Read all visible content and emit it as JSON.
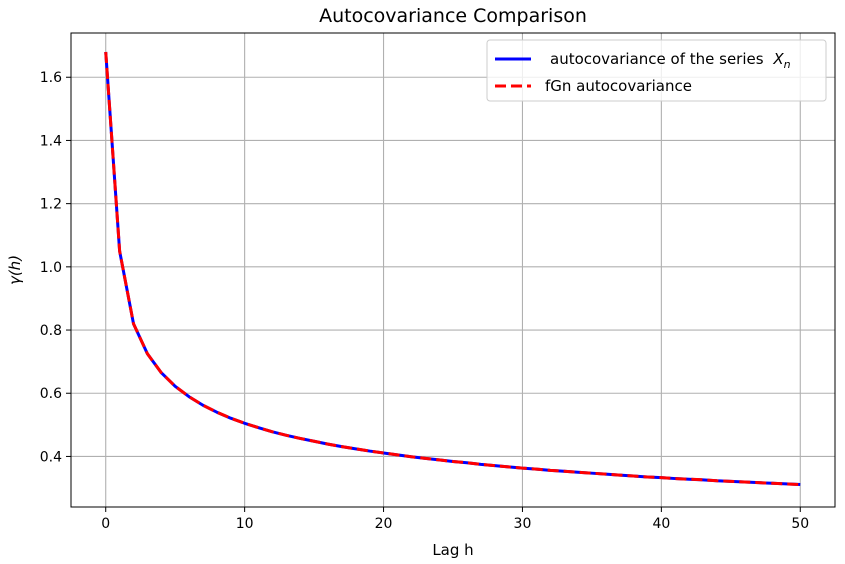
{
  "chart_data": {
    "type": "line",
    "title": "Autocovariance  Comparison",
    "xlabel": "Lag h",
    "ylabel": "γ(h)",
    "xlim": [
      -2.5,
      52.5
    ],
    "ylim": [
      0.24,
      1.74
    ],
    "xticks": [
      0,
      10,
      20,
      30,
      40,
      50
    ],
    "yticks": [
      0.4,
      0.6,
      0.8,
      1.0,
      1.2,
      1.4,
      1.6
    ],
    "xtick_labels": [
      "0",
      "10",
      "20",
      "30",
      "40",
      "50"
    ],
    "ytick_labels": [
      "0.4",
      "0.6",
      "0.8",
      "1.0",
      "1.2",
      "1.4",
      "1.6"
    ],
    "grid": true,
    "legend_position": "top-right",
    "x": [
      0,
      1,
      2,
      3,
      4,
      5,
      6,
      7,
      8,
      9,
      10,
      11,
      12,
      13,
      14,
      15,
      16,
      17,
      18,
      19,
      20,
      21,
      22,
      23,
      24,
      25,
      26,
      27,
      28,
      29,
      30,
      31,
      32,
      33,
      34,
      35,
      36,
      37,
      38,
      39,
      40,
      41,
      42,
      43,
      44,
      45,
      46,
      47,
      48,
      49,
      50
    ],
    "series": [
      {
        "name": "autocovariance of the series",
        "name_subscript_var": "X",
        "name_subscript": "n",
        "color": "#0000ff",
        "style": "solid",
        "values": [
          1.68,
          1.05,
          0.82,
          0.725,
          0.665,
          0.622,
          0.589,
          0.562,
          0.54,
          0.521,
          0.505,
          0.491,
          0.478,
          0.467,
          0.457,
          0.448,
          0.439,
          0.431,
          0.424,
          0.417,
          0.411,
          0.405,
          0.399,
          0.394,
          0.389,
          0.384,
          0.38,
          0.375,
          0.371,
          0.367,
          0.363,
          0.36,
          0.356,
          0.353,
          0.35,
          0.347,
          0.344,
          0.341,
          0.338,
          0.335,
          0.333,
          0.33,
          0.328,
          0.326,
          0.323,
          0.321,
          0.319,
          0.317,
          0.315,
          0.313,
          0.311
        ]
      },
      {
        "name": "fGn autocovariance",
        "color": "#ff0000",
        "style": "dashed",
        "values": [
          1.68,
          1.05,
          0.82,
          0.725,
          0.665,
          0.622,
          0.589,
          0.562,
          0.54,
          0.521,
          0.505,
          0.491,
          0.478,
          0.467,
          0.457,
          0.448,
          0.439,
          0.431,
          0.424,
          0.417,
          0.411,
          0.405,
          0.399,
          0.394,
          0.389,
          0.384,
          0.38,
          0.375,
          0.371,
          0.367,
          0.363,
          0.36,
          0.356,
          0.353,
          0.35,
          0.347,
          0.344,
          0.341,
          0.338,
          0.335,
          0.333,
          0.33,
          0.328,
          0.326,
          0.323,
          0.321,
          0.319,
          0.317,
          0.315,
          0.313,
          0.311
        ]
      }
    ]
  }
}
